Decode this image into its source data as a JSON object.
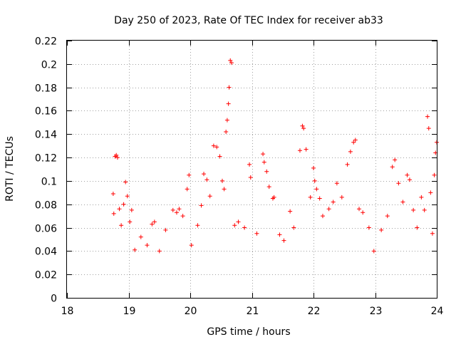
{
  "chart_data": {
    "type": "scatter",
    "title": "Day 250 of 2023, Rate Of TEC Index for receiver ab33",
    "xlabel": "GPS time / hours",
    "ylabel": "ROTI / TECUs",
    "xlim": [
      18,
      24
    ],
    "ylim": [
      0,
      0.22
    ],
    "x_ticks": [
      "18",
      "19",
      "20",
      "21",
      "22",
      "23",
      "24"
    ],
    "y_ticks": [
      "0",
      "0.02",
      "0.04",
      "0.06",
      "0.08",
      "0.1",
      "0.12",
      "0.14",
      "0.16",
      "0.18",
      "0.2",
      "0.22"
    ],
    "grid": true,
    "marker": "plus",
    "color": "#ff0000",
    "points": [
      [
        18.75,
        0.089
      ],
      [
        18.76,
        0.072
      ],
      [
        18.78,
        0.121
      ],
      [
        18.8,
        0.122
      ],
      [
        18.82,
        0.12
      ],
      [
        18.85,
        0.076
      ],
      [
        18.88,
        0.062
      ],
      [
        18.92,
        0.08
      ],
      [
        18.95,
        0.099
      ],
      [
        18.98,
        0.087
      ],
      [
        19.02,
        0.065
      ],
      [
        19.05,
        0.075
      ],
      [
        19.1,
        0.041
      ],
      [
        19.2,
        0.052
      ],
      [
        19.3,
        0.045
      ],
      [
        19.38,
        0.063
      ],
      [
        19.42,
        0.065
      ],
      [
        19.5,
        0.04
      ],
      [
        19.6,
        0.058
      ],
      [
        19.72,
        0.075
      ],
      [
        19.78,
        0.073
      ],
      [
        19.82,
        0.076
      ],
      [
        19.88,
        0.07
      ],
      [
        19.95,
        0.093
      ],
      [
        19.98,
        0.105
      ],
      [
        20.02,
        0.045
      ],
      [
        20.12,
        0.062
      ],
      [
        20.18,
        0.079
      ],
      [
        20.22,
        0.106
      ],
      [
        20.27,
        0.101
      ],
      [
        20.32,
        0.087
      ],
      [
        20.38,
        0.13
      ],
      [
        20.43,
        0.129
      ],
      [
        20.48,
        0.121
      ],
      [
        20.52,
        0.1
      ],
      [
        20.55,
        0.093
      ],
      [
        20.58,
        0.142
      ],
      [
        20.6,
        0.152
      ],
      [
        20.62,
        0.166
      ],
      [
        20.63,
        0.18
      ],
      [
        20.65,
        0.203
      ],
      [
        20.67,
        0.201
      ],
      [
        20.72,
        0.062
      ],
      [
        20.78,
        0.065
      ],
      [
        20.88,
        0.06
      ],
      [
        20.96,
        0.114
      ],
      [
        20.98,
        0.103
      ],
      [
        21.08,
        0.055
      ],
      [
        21.18,
        0.123
      ],
      [
        21.2,
        0.116
      ],
      [
        21.24,
        0.108
      ],
      [
        21.28,
        0.095
      ],
      [
        21.34,
        0.085
      ],
      [
        21.36,
        0.086
      ],
      [
        21.45,
        0.054
      ],
      [
        21.52,
        0.049
      ],
      [
        21.62,
        0.074
      ],
      [
        21.68,
        0.06
      ],
      [
        21.78,
        0.126
      ],
      [
        21.82,
        0.147
      ],
      [
        21.84,
        0.145
      ],
      [
        21.88,
        0.127
      ],
      [
        21.95,
        0.086
      ],
      [
        22.0,
        0.111
      ],
      [
        22.02,
        0.1
      ],
      [
        22.05,
        0.093
      ],
      [
        22.1,
        0.085
      ],
      [
        22.15,
        0.07
      ],
      [
        22.25,
        0.076
      ],
      [
        22.32,
        0.082
      ],
      [
        22.38,
        0.098
      ],
      [
        22.46,
        0.086
      ],
      [
        22.55,
        0.114
      ],
      [
        22.6,
        0.125
      ],
      [
        22.65,
        0.133
      ],
      [
        22.68,
        0.135
      ],
      [
        22.74,
        0.076
      ],
      [
        22.8,
        0.073
      ],
      [
        22.9,
        0.06
      ],
      [
        22.98,
        0.04
      ],
      [
        23.1,
        0.058
      ],
      [
        23.2,
        0.07
      ],
      [
        23.28,
        0.112
      ],
      [
        23.32,
        0.118
      ],
      [
        23.38,
        0.098
      ],
      [
        23.45,
        0.082
      ],
      [
        23.52,
        0.105
      ],
      [
        23.56,
        0.101
      ],
      [
        23.62,
        0.075
      ],
      [
        23.68,
        0.06
      ],
      [
        23.75,
        0.086
      ],
      [
        23.8,
        0.075
      ],
      [
        23.85,
        0.155
      ],
      [
        23.87,
        0.145
      ],
      [
        23.9,
        0.09
      ],
      [
        23.93,
        0.055
      ],
      [
        23.96,
        0.105
      ],
      [
        23.98,
        0.124
      ],
      [
        24.0,
        0.133
      ]
    ]
  }
}
